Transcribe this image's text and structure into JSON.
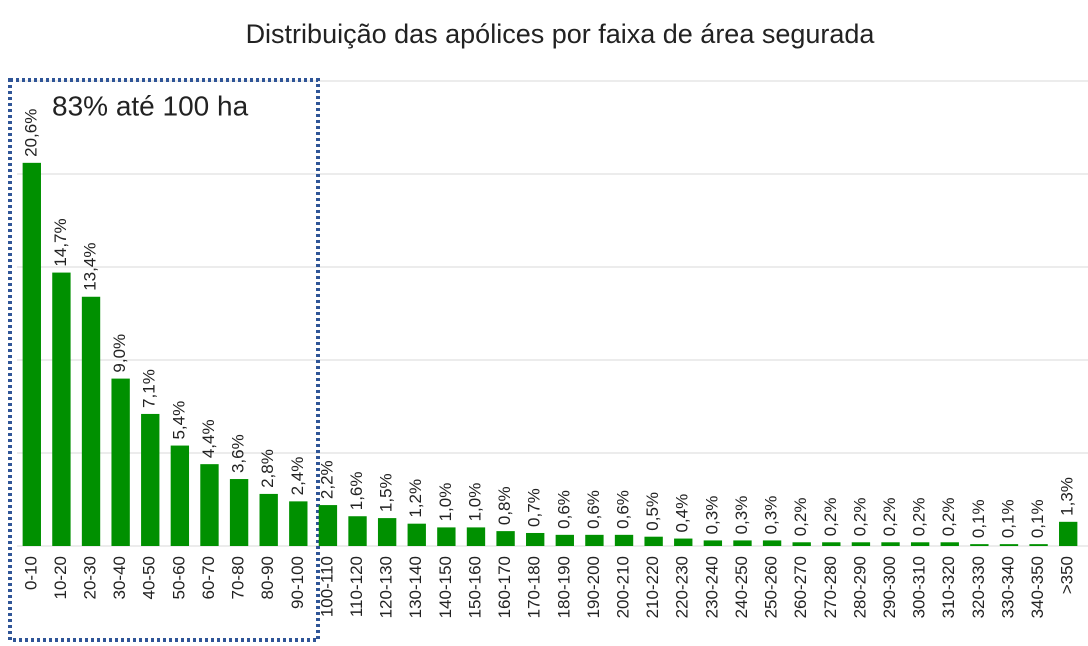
{
  "chart_data": {
    "type": "bar",
    "title": "Distribuição das apólices por faixa de área segurada",
    "annotation": "83% até 100 ha",
    "categories": [
      "0-10",
      "10-20",
      "20-30",
      "30-40",
      "40-50",
      "50-60",
      "60-70",
      "70-80",
      "80-90",
      "90-100",
      "100-110",
      "110-120",
      "120-130",
      "130-140",
      "140-150",
      "150-160",
      "160-170",
      "170-180",
      "180-190",
      "190-200",
      "200-210",
      "210-220",
      "220-230",
      "230-240",
      "240-250",
      "250-260",
      "260-270",
      "270-280",
      "280-290",
      "290-300",
      "300-310",
      "310-320",
      "320-330",
      "330-340",
      "340-350",
      ">350"
    ],
    "values": [
      20.6,
      14.7,
      13.4,
      9.0,
      7.1,
      5.4,
      4.4,
      3.6,
      2.8,
      2.4,
      2.2,
      1.6,
      1.5,
      1.2,
      1.0,
      1.0,
      0.8,
      0.7,
      0.6,
      0.6,
      0.6,
      0.5,
      0.4,
      0.3,
      0.3,
      0.3,
      0.2,
      0.2,
      0.2,
      0.2,
      0.2,
      0.2,
      0.1,
      0.1,
      0.1,
      1.3
    ],
    "value_labels": [
      "20,6%",
      "14,7%",
      "13,4%",
      "9,0%",
      "7,1%",
      "5,4%",
      "4,4%",
      "3,6%",
      "2,8%",
      "2,4%",
      "2,2%",
      "1,6%",
      "1,5%",
      "1,2%",
      "1,0%",
      "1,0%",
      "0,8%",
      "0,7%",
      "0,6%",
      "0,6%",
      "0,6%",
      "0,5%",
      "0,4%",
      "0,3%",
      "0,3%",
      "0,3%",
      "0,2%",
      "0,2%",
      "0,2%",
      "0,2%",
      "0,2%",
      "0,2%",
      "0,1%",
      "0,1%",
      "0,1%",
      "1,3%"
    ],
    "color": "#009000",
    "ylim": [
      0,
      25
    ],
    "yticks": [
      0,
      5,
      10,
      15,
      20,
      25
    ],
    "grid": true
  }
}
